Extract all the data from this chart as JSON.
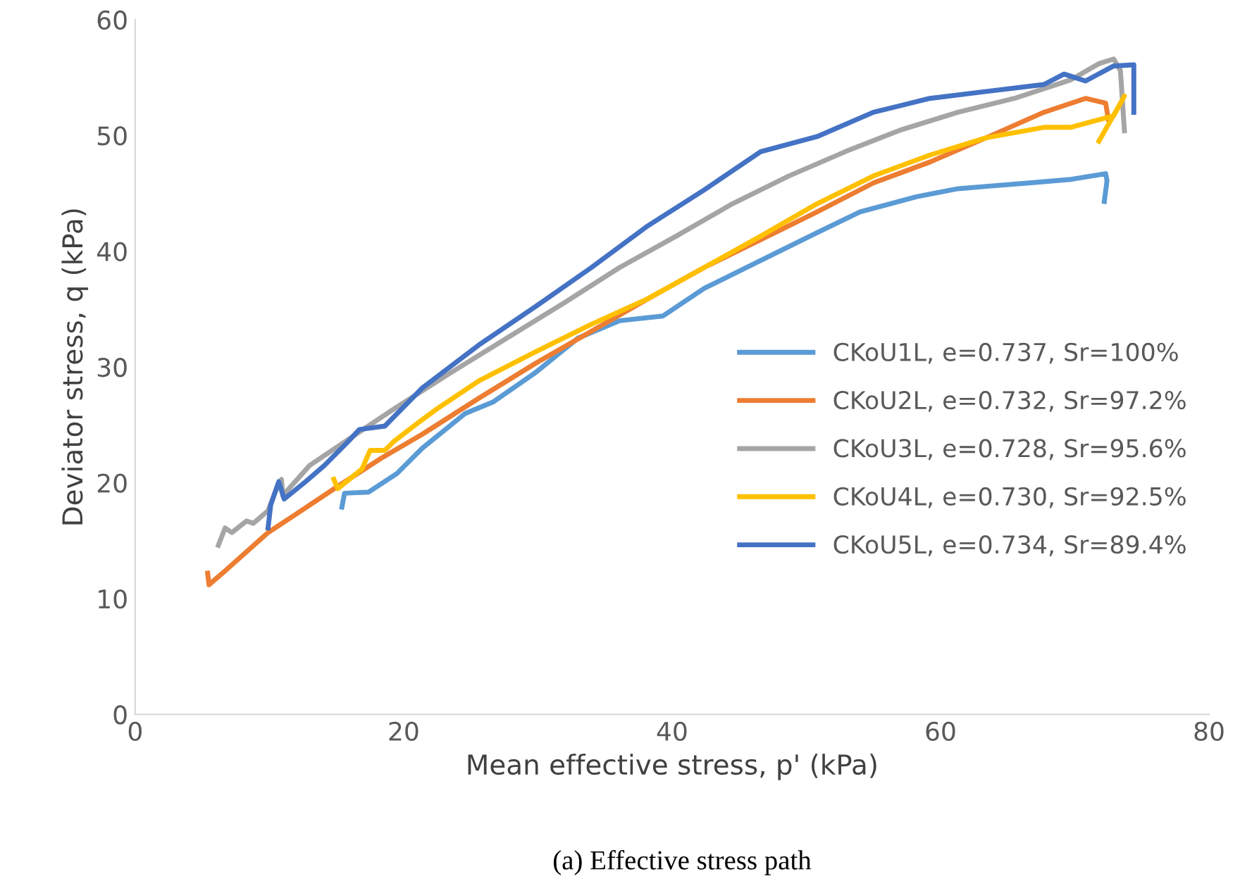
{
  "chart_data": {
    "type": "line",
    "xlabel": "Mean effective stress, p' (kPa)",
    "ylabel": "Deviator stress, q (kPa)",
    "annotations": [
      "(a) Effective stress path"
    ],
    "xlim": [
      0,
      80
    ],
    "ylim": [
      0,
      60
    ],
    "xticks": [
      0,
      20,
      40,
      60,
      80
    ],
    "yticks": [
      0,
      10,
      20,
      30,
      40,
      50,
      60
    ],
    "grid": false,
    "legend": "right",
    "marker": "none",
    "line_style": "solid",
    "series": [
      {
        "name": "CKoU1L, e=0.737, Sr=100%",
        "color": "#5b9bd5",
        "x": [
          15.4,
          15.6,
          17.4,
          19.5,
          21.4,
          24.6,
          26.7,
          29.8,
          33.0,
          36.1,
          39.3,
          42.4,
          46.6,
          50.8,
          54.0,
          58.2,
          61.3,
          63.4,
          66.6,
          69.7,
          72.3,
          72.4,
          72.2
        ],
        "values": [
          17.9,
          19.1,
          19.2,
          20.8,
          23.0,
          26.0,
          27.0,
          29.5,
          32.5,
          34.0,
          34.4,
          36.8,
          39.2,
          41.6,
          43.4,
          44.7,
          45.4,
          45.6,
          45.9,
          46.2,
          46.7,
          46.1,
          44.3
        ]
      },
      {
        "name": "CKoU2L, e=0.732, Sr=97.2%",
        "color": "#ed7d31",
        "x": [
          5.4,
          5.5,
          6.7,
          9.9,
          12.0,
          15.1,
          18.3,
          21.4,
          25.6,
          29.8,
          34.0,
          38.2,
          42.4,
          46.6,
          50.8,
          55.0,
          59.2,
          63.4,
          67.7,
          70.8,
          72.3,
          72.5
        ],
        "values": [
          12.2,
          11.2,
          12.4,
          15.7,
          17.3,
          19.7,
          22.1,
          24.2,
          27.3,
          30.3,
          33.1,
          35.9,
          38.6,
          41.0,
          43.4,
          45.9,
          47.7,
          49.8,
          52.0,
          53.2,
          52.8,
          51.4
        ]
      },
      {
        "name": "CKoU3L, e=0.728, Sr=95.6%",
        "color": "#a5a5a5",
        "x": [
          6.2,
          6.7,
          7.2,
          8.3,
          8.8,
          9.9,
          10.6,
          10.9,
          11.0,
          13.0,
          16.2,
          19.3,
          23.5,
          27.7,
          31.9,
          36.1,
          40.3,
          44.5,
          48.7,
          52.9,
          57.1,
          61.3,
          65.5,
          69.7,
          71.8,
          72.9,
          73.4,
          73.7
        ],
        "values": [
          14.6,
          16.1,
          15.7,
          16.7,
          16.5,
          17.6,
          19.7,
          20.3,
          18.9,
          21.5,
          24.0,
          26.4,
          29.5,
          32.5,
          35.5,
          38.6,
          41.3,
          44.1,
          46.5,
          48.6,
          50.5,
          52.0,
          53.2,
          54.8,
          56.2,
          56.6,
          55.6,
          50.4
        ]
      },
      {
        "name": "CKoU4L, e=0.730, Sr=92.5%",
        "color": "#ffc000",
        "x": [
          14.8,
          15.1,
          16.9,
          17.5,
          18.6,
          19.3,
          21.1,
          22.5,
          25.6,
          29.8,
          34.0,
          38.2,
          42.4,
          46.6,
          50.8,
          55.0,
          59.2,
          63.4,
          67.7,
          69.7,
          72.9,
          73.7,
          71.8
        ],
        "values": [
          20.3,
          19.5,
          21.2,
          22.8,
          22.8,
          23.6,
          25.2,
          26.4,
          28.8,
          31.3,
          33.7,
          35.9,
          38.6,
          41.3,
          44.1,
          46.5,
          48.3,
          49.8,
          50.7,
          50.7,
          51.7,
          53.4,
          49.5
        ]
      },
      {
        "name": "CKoU5L, e=0.734, Sr=89.4%",
        "color": "#4472c4",
        "x": [
          9.9,
          10.1,
          10.7,
          11.1,
          12.7,
          14.1,
          15.9,
          16.7,
          18.6,
          21.4,
          25.6,
          29.8,
          34.0,
          38.2,
          42.4,
          46.6,
          50.8,
          55.0,
          59.2,
          63.4,
          67.7,
          69.2,
          70.8,
          72.9,
          74.4,
          74.4
        ],
        "values": [
          16.1,
          18.1,
          20.1,
          18.6,
          20.1,
          21.5,
          23.6,
          24.6,
          24.9,
          28.2,
          31.9,
          35.2,
          38.6,
          42.2,
          45.3,
          48.6,
          49.9,
          52.0,
          53.2,
          53.8,
          54.4,
          55.3,
          54.7,
          56.0,
          56.1,
          52.0
        ]
      }
    ]
  }
}
